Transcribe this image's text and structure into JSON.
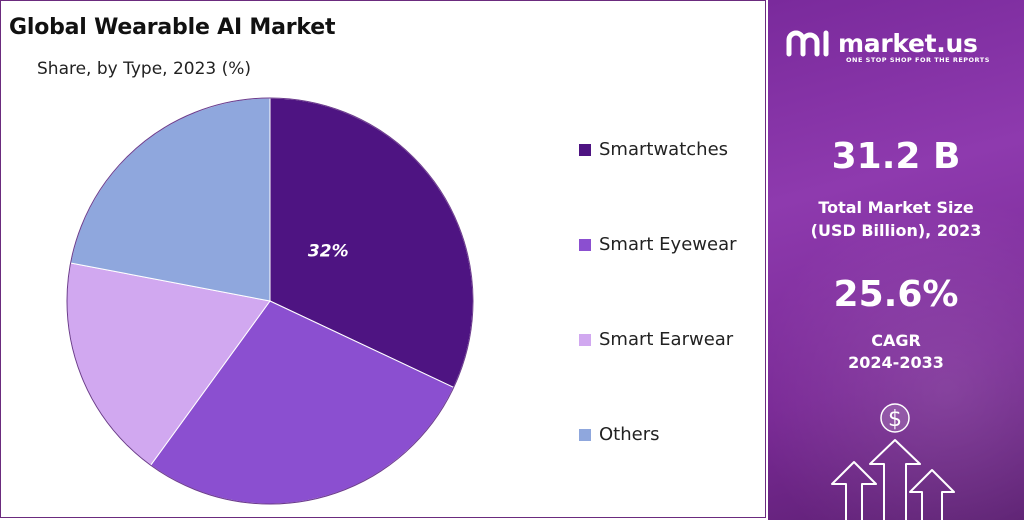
{
  "chart_data": {
    "type": "pie",
    "title": "Global Wearable AI Market",
    "subtitle": "Share, by Type, 2023 (%)",
    "categories": [
      "Smartwatches",
      "Smart Eyewear",
      "Smart Earwear",
      "Others"
    ],
    "values": [
      32,
      28,
      18,
      22
    ],
    "colors": [
      "#4e1482",
      "#8b4fd0",
      "#d1a8f0",
      "#8fa7dd"
    ],
    "data_labels": [
      "32%",
      "",
      "",
      ""
    ],
    "legend_position": "right"
  },
  "sidebar": {
    "brand": "market.us",
    "tagline": "ONE STOP SHOP FOR THE REPORTS",
    "market_size_value": "31.2 B",
    "market_size_label_line1": "Total Market Size",
    "market_size_label_line2": "(USD Billion), 2023",
    "cagr_value": "25.6%",
    "cagr_label_line1": "CAGR",
    "cagr_label_line2": "2024-2033",
    "currency_symbol": "$",
    "logo_icon": "market-us-logo-icon",
    "arrows_icon": "growth-arrows-icon"
  }
}
